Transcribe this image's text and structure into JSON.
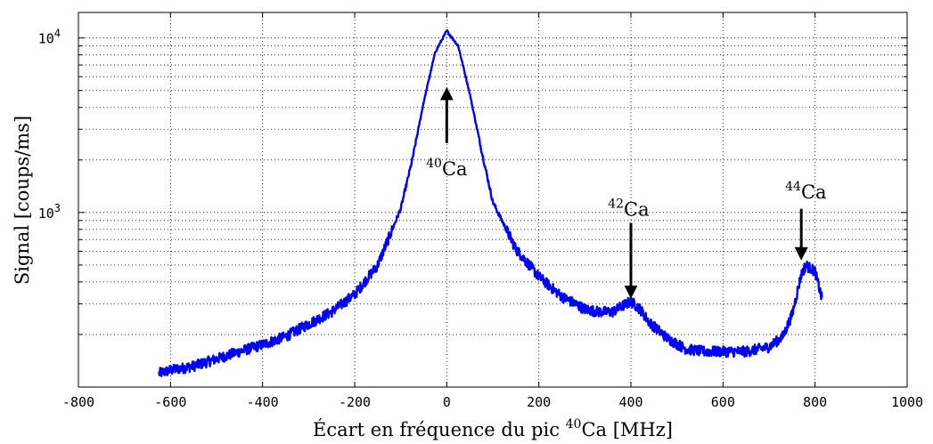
{
  "chart_data": {
    "type": "line",
    "title": "",
    "xlabel": {
      "prefix": "Écart en fréquence du pic ",
      "sup": "40",
      "suffix": "Ca [MHz]"
    },
    "ylabel": "Signal [coups/ms]",
    "xlim": [
      -800,
      1000
    ],
    "ylim": [
      100,
      14000
    ],
    "y_scale": "log",
    "grid": true,
    "grid_style": "dotted",
    "x_ticks": [
      -800,
      -600,
      -400,
      -200,
      0,
      200,
      400,
      600,
      800,
      1000
    ],
    "x_tick_labels": [
      "-800",
      "-600",
      "-400",
      "-200",
      "0",
      "200",
      "400",
      "600",
      "800",
      "1000"
    ],
    "y_ticks": [
      {
        "value": 1000,
        "base": "10",
        "exp": "3"
      },
      {
        "value": 10000,
        "base": "10",
        "exp": "4"
      }
    ],
    "series": [
      {
        "color": "#0000ff",
        "x": [
          -625,
          -600,
          -550,
          -500,
          -450,
          -400,
          -350,
          -300,
          -250,
          -200,
          -150,
          -100,
          -75,
          -50,
          -25,
          0,
          25,
          50,
          75,
          100,
          150,
          200,
          250,
          300,
          330,
          360,
          380,
          400,
          420,
          440,
          480,
          520,
          560,
          600,
          650,
          700,
          730,
          750,
          770,
          780,
          800,
          815
        ],
        "values": [
          120,
          125,
          132,
          145,
          160,
          175,
          195,
          230,
          270,
          340,
          500,
          1050,
          2000,
          4300,
          8300,
          11000,
          9000,
          4800,
          2300,
          1150,
          620,
          430,
          330,
          280,
          270,
          270,
          290,
          310,
          280,
          235,
          190,
          165,
          160,
          160,
          160,
          170,
          195,
          260,
          440,
          500,
          460,
          320
        ]
      }
    ],
    "annotations": [
      {
        "sup": "40",
        "text": "Ca",
        "x": 0,
        "y": 1800,
        "arrow_from": [
          0,
          2500
        ],
        "arrow_to": [
          0,
          4800
        ]
      },
      {
        "sup": "42",
        "text": "Ca",
        "x": 395,
        "y": 1050,
        "arrow_from": [
          400,
          870
        ],
        "arrow_to": [
          400,
          350
        ]
      },
      {
        "sup": "44",
        "text": "Ca",
        "x": 780,
        "y": 1320,
        "arrow_from": [
          770,
          1050
        ],
        "arrow_to": [
          770,
          580
        ]
      }
    ]
  }
}
